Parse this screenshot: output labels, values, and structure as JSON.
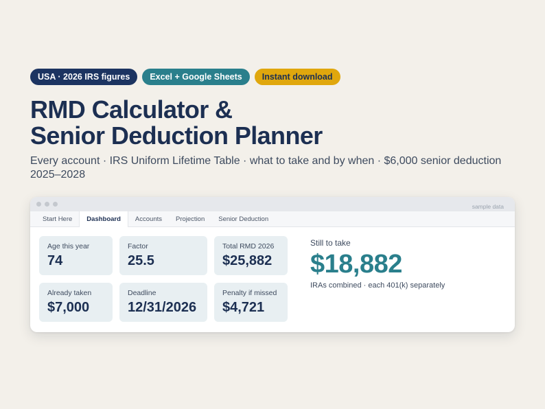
{
  "badges": [
    {
      "label": "USA · 2026 IRS figures",
      "color": "#1c3461"
    },
    {
      "label": "Excel + Google Sheets",
      "color": "#2a7f8c"
    },
    {
      "label": "Instant download",
      "color": "#e0a70d"
    }
  ],
  "title_line1": "RMD Calculator &",
  "title_line2": "Senior Deduction Planner",
  "subtitle": "Every account · IRS Uniform Lifetime Table · what to take and by when · $6,000 senior deduction 2025–2028",
  "window": {
    "sample_label": "sample data",
    "tabs": [
      {
        "label": "Start Here",
        "active": false
      },
      {
        "label": "Dashboard",
        "active": true
      },
      {
        "label": "Accounts",
        "active": false
      },
      {
        "label": "Projection",
        "active": false
      },
      {
        "label": "Senior Deduction",
        "active": false
      }
    ],
    "cards": [
      {
        "label": "Age this year",
        "value": "74"
      },
      {
        "label": "Factor",
        "value": "25.5"
      },
      {
        "label": "Total RMD 2026",
        "value": "$25,882"
      },
      {
        "label": "Already taken",
        "value": "$7,000"
      },
      {
        "label": "Deadline",
        "value": "12/31/2026"
      },
      {
        "label": "Penalty if missed",
        "value": "$4,721"
      }
    ],
    "hero": {
      "label": "Still to take",
      "value": "$18,882",
      "note": "IRAs combined · each 401(k) separately"
    }
  }
}
